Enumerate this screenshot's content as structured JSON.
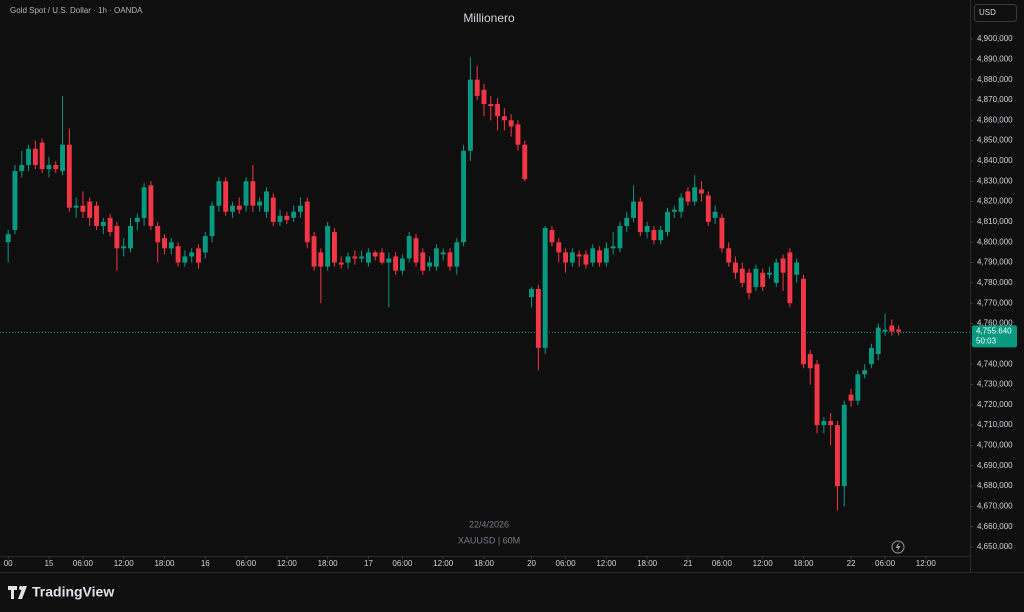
{
  "chart_data": {
    "type": "candlestick",
    "title": "Millionero",
    "subtitle": "Gold Spot / U.S. Dollar · 1h · OANDA",
    "currency": "USD",
    "watermark": [
      "22/4/2026",
      "XAUUSD | 60M"
    ],
    "brand": "TradingView",
    "countdown": "50:03",
    "up_color": "#089981",
    "down_color": "#f23645",
    "grid": false,
    "last_price": {
      "value": 4755640,
      "label": "4,755.640"
    },
    "xlim": [
      -1.2,
      141.5
    ],
    "xticks": [
      {
        "value": 0,
        "label": "00"
      },
      {
        "value": 6,
        "label": "15"
      },
      {
        "value": 11,
        "label": "06:00"
      },
      {
        "value": 17,
        "label": "12:00"
      },
      {
        "value": 23,
        "label": "18:00"
      },
      {
        "value": 29,
        "label": "16"
      },
      {
        "value": 35,
        "label": "06:00"
      },
      {
        "value": 41,
        "label": "12:00"
      },
      {
        "value": 47,
        "label": "18:00"
      },
      {
        "value": 53,
        "label": "17"
      },
      {
        "value": 58,
        "label": "06:00"
      },
      {
        "value": 64,
        "label": "12:00"
      },
      {
        "value": 70,
        "label": "18:00"
      },
      {
        "value": 77,
        "label": "20"
      },
      {
        "value": 82,
        "label": "06:00"
      },
      {
        "value": 88,
        "label": "12:00"
      },
      {
        "value": 94,
        "label": "18:00"
      },
      {
        "value": 100,
        "label": "21"
      },
      {
        "value": 105,
        "label": "06:00"
      },
      {
        "value": 111,
        "label": "12:00"
      },
      {
        "value": 117,
        "label": "18:00"
      },
      {
        "value": 124,
        "label": "22"
      },
      {
        "value": 129,
        "label": "06:00"
      },
      {
        "value": 135,
        "label": "12:00"
      }
    ],
    "ylim": [
      4645600,
      4919200
    ],
    "yticks": [
      {
        "value": 4650000,
        "label": "4,650,000"
      },
      {
        "value": 4660000,
        "label": "4,660,000"
      },
      {
        "value": 4670000,
        "label": "4,670,000"
      },
      {
        "value": 4680000,
        "label": "4,680,000"
      },
      {
        "value": 4690000,
        "label": "4,690,000"
      },
      {
        "value": 4700000,
        "label": "4,700,000"
      },
      {
        "value": 4710000,
        "label": "4,710,000"
      },
      {
        "value": 4720000,
        "label": "4,720,000"
      },
      {
        "value": 4730000,
        "label": "4,730,000"
      },
      {
        "value": 4740000,
        "label": "4,740,000"
      },
      {
        "value": 4750000,
        "label": "4,750,000"
      },
      {
        "value": 4760000,
        "label": "4,760,000"
      },
      {
        "value": 4770000,
        "label": "4,770,000"
      },
      {
        "value": 4780000,
        "label": "4,780,000"
      },
      {
        "value": 4790000,
        "label": "4,790,000"
      },
      {
        "value": 4800000,
        "label": "4,800,000"
      },
      {
        "value": 4810000,
        "label": "4,810,000"
      },
      {
        "value": 4820000,
        "label": "4,820,000"
      },
      {
        "value": 4830000,
        "label": "4,830,000"
      },
      {
        "value": 4840000,
        "label": "4,840,000"
      },
      {
        "value": 4850000,
        "label": "4,850,000"
      },
      {
        "value": 4860000,
        "label": "4,860,000"
      },
      {
        "value": 4870000,
        "label": "4,870,000"
      },
      {
        "value": 4880000,
        "label": "4,880,000"
      },
      {
        "value": 4890000,
        "label": "4,890,000"
      },
      {
        "value": 4900000,
        "label": "4,900,000"
      }
    ],
    "open": [
      4800000,
      4806000,
      4835000,
      4838000,
      4846000,
      4849000,
      4836000,
      4838000,
      4835000,
      4848000,
      4817000,
      4818000,
      4820000,
      4818000,
      4808000,
      4812000,
      4808000,
      4797000,
      4797000,
      4810000,
      4812000,
      4828000,
      4808000,
      4802000,
      4797000,
      4798000,
      4790000,
      4793000,
      4797000,
      4795000,
      4803000,
      4818000,
      4830000,
      4815000,
      4818000,
      4818000,
      4830000,
      4818000,
      4815000,
      4822000,
      4810000,
      4813000,
      4812000,
      4815000,
      4820000,
      4803000,
      4795000,
      4788000,
      4805000,
      4790000,
      4790000,
      4793000,
      4792000,
      4790000,
      4795000,
      4795000,
      4790000,
      4793000,
      4786000,
      4792000,
      4802000,
      4795000,
      4788000,
      4788000,
      4794000,
      4795000,
      4788000,
      4800000,
      4845000,
      4880000,
      4875000,
      4868000,
      4868000,
      4862000,
      4860000,
      4858000,
      4848000,
      4773000,
      4777000,
      4748000,
      4806000,
      4800000,
      4795000,
      4790000,
      4794000,
      4794000,
      4790000,
      4796000,
      4790000,
      4797000,
      4797000,
      4808000,
      4812000,
      4820000,
      4805000,
      4806000,
      4801000,
      4805000,
      4815000,
      4815000,
      4825000,
      4820000,
      4826000,
      4823000,
      4812000,
      4812000,
      4797000,
      4790000,
      4787000,
      4785000,
      4778000,
      4785000,
      4784000,
      4780000,
      4792000,
      4795000,
      4784000,
      4782000,
      4745000,
      4740000,
      4710000,
      4712000,
      4710000,
      4680000,
      4725000,
      4722000,
      4735000,
      4740000,
      4745000,
      4756000,
      4759000,
      4757000
    ],
    "high": [
      4806000,
      4838000,
      4845000,
      4848000,
      4850000,
      4851000,
      4842000,
      4840000,
      4872000,
      4856000,
      4822000,
      4825000,
      4822000,
      4820000,
      4812000,
      4814000,
      4810000,
      4802000,
      4812000,
      4814000,
      4829000,
      4830000,
      4810000,
      4804000,
      4802000,
      4800000,
      4796000,
      4797000,
      4799000,
      4805000,
      4820000,
      4832000,
      4832000,
      4820000,
      4822000,
      4832000,
      4838000,
      4822000,
      4827000,
      4824000,
      4816000,
      4815000,
      4818000,
      4822000,
      4822000,
      4805000,
      4797000,
      4810000,
      4807000,
      4793000,
      4795000,
      4796000,
      4796000,
      4797000,
      4796000,
      4797000,
      4795000,
      4795000,
      4794000,
      4805000,
      4804000,
      4797000,
      4793000,
      4799000,
      4797000,
      4797000,
      4802000,
      4848000,
      4891000,
      4887000,
      4878000,
      4872000,
      4871000,
      4866000,
      4863000,
      4860000,
      4850000,
      4778000,
      4779000,
      4808000,
      4808000,
      4802000,
      4797000,
      4797000,
      4796000,
      4796000,
      4799000,
      4798000,
      4800000,
      4805000,
      4810000,
      4815000,
      4828000,
      4822000,
      4810000,
      4808000,
      4808000,
      4817000,
      4818000,
      4824000,
      4827000,
      4833000,
      4830000,
      4825000,
      4818000,
      4814000,
      4800000,
      4793000,
      4790000,
      4787000,
      4789000,
      4787000,
      4788000,
      4792000,
      4794000,
      4797000,
      4792000,
      4784000,
      4747000,
      4742000,
      4714000,
      4716000,
      4712000,
      4722000,
      4728000,
      4737000,
      4740000,
      4750000,
      4760000,
      4765000,
      4762000,
      4759000
    ],
    "low": [
      4790000,
      4804000,
      4832000,
      4835000,
      4836000,
      4834000,
      4832000,
      4834000,
      4833000,
      4815000,
      4812000,
      4812000,
      4808000,
      4806000,
      4804000,
      4803000,
      4786000,
      4793000,
      4795000,
      4806000,
      4808000,
      4806000,
      4790000,
      4794000,
      4794000,
      4788000,
      4788000,
      4790000,
      4787000,
      4792000,
      4800000,
      4815000,
      4813000,
      4812000,
      4814000,
      4815000,
      4815000,
      4815000,
      4812000,
      4808000,
      4808000,
      4809000,
      4810000,
      4812000,
      4797000,
      4786000,
      4770000,
      4786000,
      4788000,
      4787000,
      4787000,
      4789000,
      4790000,
      4788000,
      4791000,
      4789000,
      4768000,
      4784000,
      4784000,
      4790000,
      4788000,
      4784000,
      4786000,
      4786000,
      4791000,
      4786000,
      4784000,
      4798000,
      4840000,
      4870000,
      4862000,
      4860000,
      4855000,
      4855000,
      4852000,
      4845000,
      4830000,
      4768000,
      4737000,
      4745000,
      4798000,
      4790000,
      4785000,
      4788000,
      4788000,
      4787000,
      4788000,
      4788000,
      4788000,
      4794000,
      4795000,
      4805000,
      4810000,
      4803000,
      4802000,
      4799000,
      4799000,
      4803000,
      4812000,
      4812000,
      4818000,
      4818000,
      4820000,
      4808000,
      4809000,
      4795000,
      4788000,
      4782000,
      4778000,
      4772000,
      4776000,
      4776000,
      4782000,
      4778000,
      4776000,
      4768000,
      4780000,
      4738000,
      4730000,
      4706000,
      4706000,
      4700000,
      4668000,
      4670000,
      4719000,
      4720000,
      4733000,
      4738000,
      4742000,
      4754000,
      4754000,
      4754000
    ],
    "close": [
      4804000,
      4835000,
      4838000,
      4846000,
      4838000,
      4836000,
      4838000,
      4836000,
      4848000,
      4817000,
      4818000,
      4815000,
      4812000,
      4808000,
      4810000,
      4805000,
      4797000,
      4798000,
      4808000,
      4812000,
      4827000,
      4808000,
      4800000,
      4797000,
      4800000,
      4790000,
      4793000,
      4795000,
      4790000,
      4803000,
      4818000,
      4830000,
      4815000,
      4818000,
      4816000,
      4830000,
      4818000,
      4820000,
      4825000,
      4810000,
      4813000,
      4811000,
      4815000,
      4818000,
      4800000,
      4788000,
      4788000,
      4808000,
      4790000,
      4789000,
      4793000,
      4792000,
      4793000,
      4795000,
      4793000,
      4790000,
      4792000,
      4786000,
      4792000,
      4803000,
      4790000,
      4786000,
      4790000,
      4797000,
      4795000,
      4788000,
      4800000,
      4845000,
      4880000,
      4872000,
      4868000,
      4867000,
      4862000,
      4860000,
      4857000,
      4848000,
      4831000,
      4777000,
      4748000,
      4807000,
      4800000,
      4795000,
      4790000,
      4795000,
      4793000,
      4789000,
      4797000,
      4790000,
      4797000,
      4798000,
      4808000,
      4812000,
      4820000,
      4805000,
      4808000,
      4801000,
      4806000,
      4815000,
      4816000,
      4822000,
      4820000,
      4827000,
      4824000,
      4810000,
      4815000,
      4797000,
      4790000,
      4785000,
      4780000,
      4775000,
      4787000,
      4778000,
      4785000,
      4790000,
      4785000,
      4770000,
      4790000,
      4740000,
      4738000,
      4710000,
      4712000,
      4710000,
      4680000,
      4720000,
      4722000,
      4735000,
      4737000,
      4748000,
      4758000,
      4757000,
      4756000,
      4756000
    ]
  }
}
